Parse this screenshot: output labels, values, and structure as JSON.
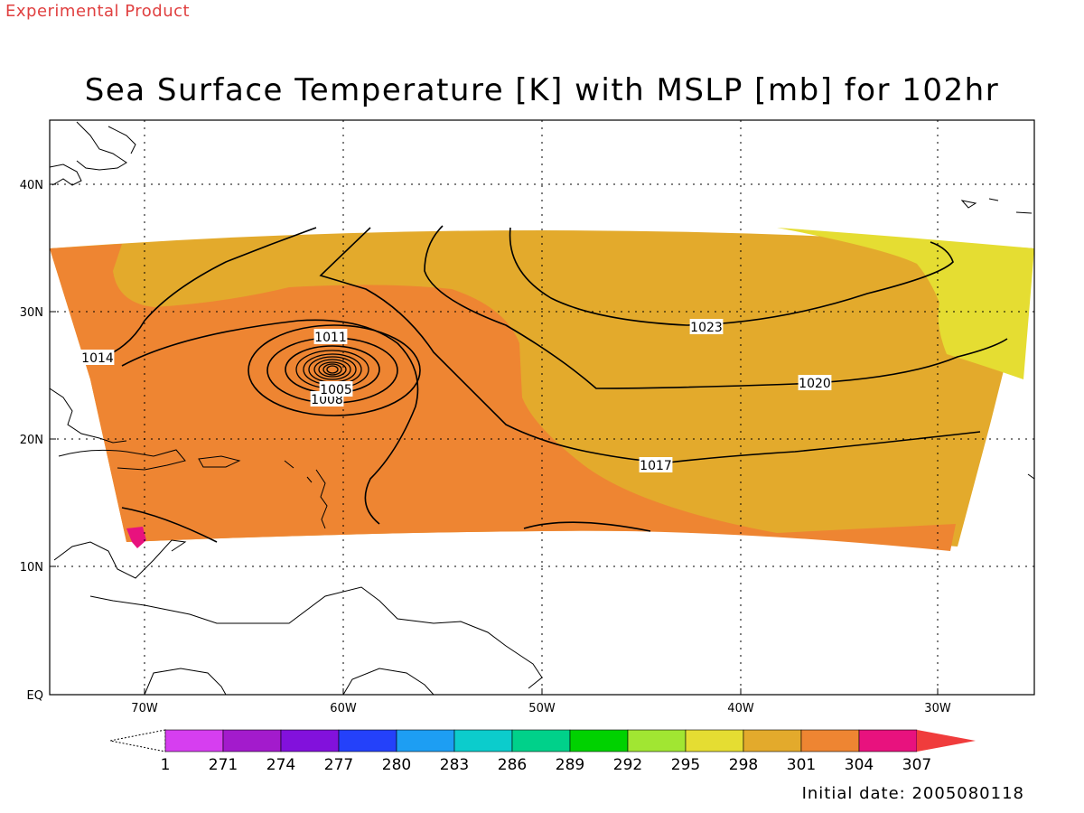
{
  "header": {
    "product_label": "Experimental Product",
    "title": "Sea Surface Temperature [K] with MSLP [mb] for 102hr"
  },
  "footer": {
    "initial_date": "Initial date: 2005080118"
  },
  "map": {
    "lat_ticks": [
      "40N",
      "30N",
      "20N",
      "10N",
      "EQ"
    ],
    "lon_ticks": [
      "70W",
      "60W",
      "50W",
      "40W",
      "30W"
    ],
    "contour_labels": [
      "1023",
      "1020",
      "1017",
      "1014",
      "1011",
      "1008",
      "1005"
    ],
    "fill_colors": {
      "band_301": "#e3aa2c",
      "band_304": "#ee8532",
      "band_298": "#e5dd32",
      "band_307": "#e8127e"
    }
  },
  "colorbar": {
    "labels": [
      "1",
      "271",
      "274",
      "277",
      "280",
      "283",
      "286",
      "289",
      "292",
      "295",
      "298",
      "301",
      "304",
      "307"
    ],
    "colors": [
      "#d63ef0",
      "#a31bcc",
      "#8211dc",
      "#2441fa",
      "#1d9ef3",
      "#0ccccc",
      "#00d18a",
      "#00d200",
      "#a1e632",
      "#e5dd32",
      "#e3aa2c",
      "#ee8532",
      "#e8127e"
    ],
    "over_color": "#f03c3c"
  }
}
